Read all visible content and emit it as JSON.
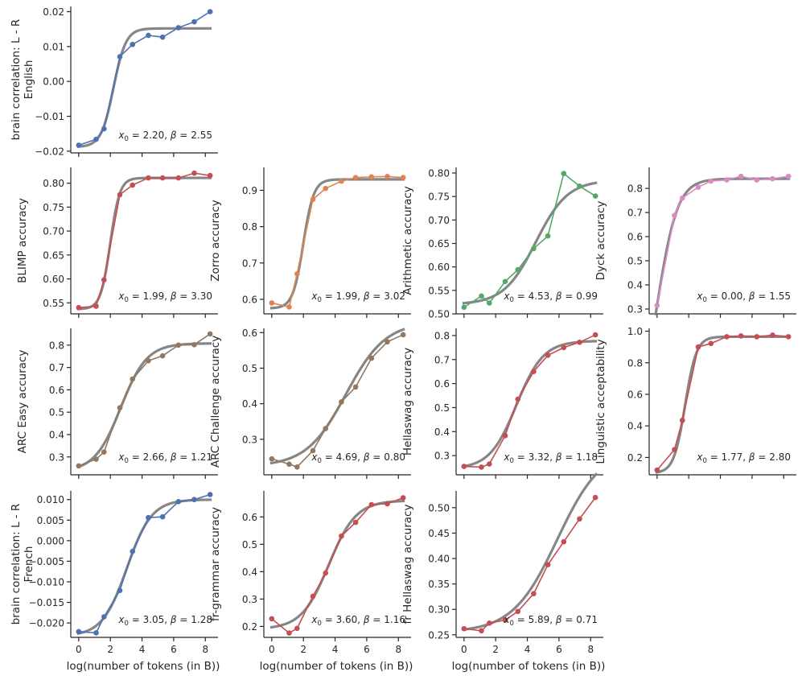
{
  "figure": {
    "xlabel": "log(number of tokens (in B))",
    "fit_color": "#808080"
  },
  "chart_data": [
    {
      "type": "line",
      "row": 0,
      "col": 0,
      "ylabel": [
        "brain correlation: L - R",
        "English"
      ],
      "color": "#4c72b0",
      "ylim": [
        -0.0205,
        0.0215
      ],
      "yticks": [
        -0.02,
        -0.01,
        0.0,
        0.01,
        0.02
      ],
      "yticklabels": [
        "−0.02",
        "−0.01",
        "0.00",
        "0.01",
        "0.02"
      ],
      "xticks": [
        0,
        2,
        4,
        6,
        8
      ],
      "xticklabels": [],
      "fit": {
        "x0": 2.2,
        "beta": 2.55,
        "low": -0.0188,
        "high": 0.0152
      },
      "annotation": {
        "x0": "2.20",
        "beta": "2.55"
      },
      "x": [
        0,
        1.1,
        1.6,
        2.6,
        3.4,
        4.4,
        5.3,
        6.3,
        7.3,
        8.3
      ],
      "y": [
        -0.0183,
        -0.0166,
        -0.0136,
        0.0071,
        0.0106,
        0.0132,
        0.0127,
        0.0154,
        0.0171,
        0.02
      ]
    },
    {
      "type": "line",
      "row": 1,
      "col": 0,
      "ylabel": [
        "BLIMP accuracy"
      ],
      "color": "#c44e52",
      "ylim": [
        0.527,
        0.833
      ],
      "yticks": [
        0.55,
        0.6,
        0.65,
        0.7,
        0.75,
        0.8
      ],
      "yticklabels": [
        "0.55",
        "0.60",
        "0.65",
        "0.70",
        "0.75",
        "0.80"
      ],
      "xticks": [
        0,
        2,
        4,
        6,
        8
      ],
      "xticklabels": [],
      "fit": {
        "x0": 1.99,
        "beta": 3.3,
        "low": 0.537,
        "high": 0.811
      },
      "annotation": {
        "x0": "1.99",
        "beta": "3.30"
      },
      "x": [
        0,
        1.1,
        1.6,
        2.6,
        3.4,
        4.4,
        5.3,
        6.3,
        7.3,
        8.3
      ],
      "y": [
        0.54,
        0.543,
        0.598,
        0.776,
        0.796,
        0.811,
        0.811,
        0.811,
        0.821,
        0.816
      ]
    },
    {
      "type": "line",
      "row": 1,
      "col": 1,
      "ylabel": [
        "Zorro accuracy"
      ],
      "color": "#dd8452",
      "ylim": [
        0.56,
        0.963
      ],
      "yticks": [
        0.6,
        0.7,
        0.8,
        0.9
      ],
      "yticklabels": [
        "0.6",
        "0.7",
        "0.8",
        "0.9"
      ],
      "xticks": [
        0,
        2,
        4,
        6,
        8
      ],
      "xticklabels": [],
      "fit": {
        "x0": 1.99,
        "beta": 3.02,
        "low": 0.575,
        "high": 0.93
      },
      "annotation": {
        "x0": "1.99",
        "beta": "3.02"
      },
      "x": [
        0,
        1.1,
        1.6,
        2.6,
        3.4,
        4.4,
        5.3,
        6.3,
        7.3,
        8.3
      ],
      "y": [
        0.59,
        0.579,
        0.67,
        0.875,
        0.905,
        0.925,
        0.935,
        0.937,
        0.938,
        0.935
      ]
    },
    {
      "type": "line",
      "row": 1,
      "col": 2,
      "ylabel": [
        "Arithmetic accuracy"
      ],
      "color": "#55a868",
      "ylim": [
        0.5,
        0.812
      ],
      "yticks": [
        0.5,
        0.55,
        0.6,
        0.65,
        0.7,
        0.75,
        0.8
      ],
      "yticklabels": [
        "0.50",
        "0.55",
        "0.60",
        "0.65",
        "0.70",
        "0.75",
        "0.80"
      ],
      "xticks": [
        0,
        2,
        4,
        6,
        8
      ],
      "xticklabels": [],
      "fit": {
        "x0": 4.53,
        "beta": 0.99,
        "low": 0.52,
        "high": 0.785
      },
      "annotation": {
        "x0": "4.53",
        "beta": "0.99"
      },
      "x": [
        0,
        1.1,
        1.6,
        2.6,
        3.4,
        4.4,
        5.3,
        6.3,
        7.3,
        8.3
      ],
      "y": [
        0.514,
        0.538,
        0.523,
        0.569,
        0.594,
        0.639,
        0.666,
        0.799,
        0.772,
        0.751
      ]
    },
    {
      "type": "line",
      "row": 1,
      "col": 3,
      "ylabel": [
        "Dyck accuracy"
      ],
      "color": "#da8bc3",
      "ylim": [
        0.28,
        0.887
      ],
      "yticks": [
        0.3,
        0.4,
        0.5,
        0.6,
        0.7,
        0.8
      ],
      "yticklabels": [
        "0.3",
        "0.4",
        "0.5",
        "0.6",
        "0.7",
        "0.8"
      ],
      "xticks": [
        0,
        2,
        4,
        6,
        8
      ],
      "xticklabels": [],
      "fit": {
        "x0": 0.0,
        "beta": 1.55,
        "low": -0.21,
        "high": 0.84
      },
      "annotation": {
        "x0": "0.00",
        "beta": "1.55"
      },
      "x": [
        0,
        1.1,
        1.6,
        2.6,
        3.4,
        4.4,
        5.3,
        6.3,
        7.3,
        8.3
      ],
      "y": [
        0.315,
        0.688,
        0.76,
        0.805,
        0.83,
        0.835,
        0.85,
        0.835,
        0.84,
        0.85
      ]
    },
    {
      "type": "line",
      "row": 2,
      "col": 0,
      "ylabel": [
        "ARC Easy accuracy"
      ],
      "color": "#937860",
      "ylim": [
        0.22,
        0.875
      ],
      "yticks": [
        0.3,
        0.4,
        0.5,
        0.6,
        0.7,
        0.8
      ],
      "yticklabels": [
        "0.3",
        "0.4",
        "0.5",
        "0.6",
        "0.7",
        "0.8"
      ],
      "xticks": [
        0,
        2,
        4,
        6,
        8
      ],
      "xticklabels": [],
      "fit": {
        "x0": 2.66,
        "beta": 1.21,
        "low": 0.234,
        "high": 0.808
      },
      "annotation": {
        "x0": "2.66",
        "beta": "1.21"
      },
      "x": [
        0,
        1.1,
        1.6,
        2.6,
        3.4,
        4.4,
        5.3,
        6.3,
        7.3,
        8.3
      ],
      "y": [
        0.26,
        0.29,
        0.322,
        0.52,
        0.648,
        0.73,
        0.752,
        0.8,
        0.802,
        0.85
      ]
    },
    {
      "type": "line",
      "row": 2,
      "col": 1,
      "ylabel": [
        "ARC Challenge accuracy"
      ],
      "color": "#937860",
      "ylim": [
        0.2,
        0.612
      ],
      "yticks": [
        0.3,
        0.4,
        0.5,
        0.6
      ],
      "yticklabels": [
        "0.3",
        "0.4",
        "0.5",
        "0.6"
      ],
      "xticks": [
        0,
        2,
        4,
        6,
        8
      ],
      "xticklabels": [],
      "fit": {
        "x0": 4.69,
        "beta": 0.8,
        "low": 0.224,
        "high": 0.63
      },
      "annotation": {
        "x0": "4.69",
        "beta": "0.80"
      },
      "x": [
        0,
        1.1,
        1.6,
        2.6,
        3.4,
        4.4,
        5.3,
        6.3,
        7.3,
        8.3
      ],
      "y": [
        0.245,
        0.23,
        0.222,
        0.268,
        0.33,
        0.405,
        0.447,
        0.528,
        0.574,
        0.594
      ]
    },
    {
      "type": "line",
      "row": 2,
      "col": 2,
      "ylabel": [
        "Hellaswag accuracy"
      ],
      "color": "#c44e52",
      "ylim": [
        0.22,
        0.83
      ],
      "yticks": [
        0.3,
        0.4,
        0.5,
        0.6,
        0.7,
        0.8
      ],
      "yticklabels": [
        "0.3",
        "0.4",
        "0.5",
        "0.6",
        "0.7",
        "0.8"
      ],
      "xticks": [
        0,
        2,
        4,
        6,
        8
      ],
      "xticklabels": [],
      "fit": {
        "x0": 3.32,
        "beta": 1.18,
        "low": 0.245,
        "high": 0.778
      },
      "annotation": {
        "x0": "3.32",
        "beta": "1.18"
      },
      "x": [
        0,
        1.1,
        1.6,
        2.6,
        3.4,
        4.4,
        5.3,
        6.3,
        7.3,
        8.3
      ],
      "y": [
        0.255,
        0.252,
        0.265,
        0.383,
        0.535,
        0.65,
        0.718,
        0.75,
        0.772,
        0.803
      ]
    },
    {
      "type": "line",
      "row": 2,
      "col": 3,
      "ylabel": [
        "Linguistic acceptability"
      ],
      "color": "#c44e52",
      "ylim": [
        0.09,
        1.018
      ],
      "yticks": [
        0.2,
        0.4,
        0.6,
        0.8,
        1.0
      ],
      "yticklabels": [
        "0.2",
        "0.4",
        "0.6",
        "0.8",
        "1.0"
      ],
      "xticks": [
        0,
        2,
        4,
        6,
        8
      ],
      "xticklabels": [],
      "fit": {
        "x0": 1.77,
        "beta": 2.8,
        "low": 0.1,
        "high": 0.965
      },
      "annotation": {
        "x0": "1.77",
        "beta": "2.80"
      },
      "x": [
        0,
        1.1,
        1.6,
        2.6,
        3.4,
        4.4,
        5.3,
        6.3,
        7.3,
        8.3
      ],
      "y": [
        0.12,
        0.25,
        0.435,
        0.9,
        0.922,
        0.965,
        0.97,
        0.965,
        0.975,
        0.965
      ]
    },
    {
      "type": "line",
      "row": 3,
      "col": 0,
      "ylabel": [
        "brain correlation: L - R",
        "French"
      ],
      "color": "#4c72b0",
      "ylim": [
        -0.0235,
        0.0121
      ],
      "yticks": [
        -0.02,
        -0.015,
        -0.01,
        -0.005,
        0.0,
        0.005,
        0.01
      ],
      "yticklabels": [
        "−0.020",
        "−0.015",
        "−0.010",
        "−0.005",
        "0.000",
        "0.005",
        "0.010"
      ],
      "xticks": [
        0,
        2,
        4,
        6,
        8
      ],
      "xticklabels": [
        "0",
        "2",
        "4",
        "6",
        "8"
      ],
      "fit": {
        "x0": 3.05,
        "beta": 1.28,
        "low": -0.0232,
        "high": 0.01
      },
      "annotation": {
        "x0": "3.05",
        "beta": "1.28"
      },
      "x": [
        0,
        1.1,
        1.6,
        2.6,
        3.4,
        4.4,
        5.3,
        6.3,
        7.3,
        8.3
      ],
      "y": [
        -0.0221,
        -0.0224,
        -0.0185,
        -0.0121,
        -0.0026,
        0.0056,
        0.0058,
        0.0095,
        0.01,
        0.0112
      ]
    },
    {
      "type": "line",
      "row": 3,
      "col": 1,
      "ylabel": [
        "fr-grammar accuracy"
      ],
      "color": "#c44e52",
      "ylim": [
        0.16,
        0.695
      ],
      "yticks": [
        0.2,
        0.3,
        0.4,
        0.5,
        0.6
      ],
      "yticklabels": [
        "0.2",
        "0.3",
        "0.4",
        "0.5",
        "0.6"
      ],
      "xticks": [
        0,
        2,
        4,
        6,
        8
      ],
      "xticklabels": [
        "0",
        "2",
        "4",
        "6",
        "8"
      ],
      "fit": {
        "x0": 3.6,
        "beta": 1.16,
        "low": 0.19,
        "high": 0.66
      },
      "annotation": {
        "x0": "3.60",
        "beta": "1.16"
      },
      "x": [
        0,
        1.1,
        1.6,
        2.6,
        3.4,
        4.4,
        5.3,
        6.3,
        7.3,
        8.3
      ],
      "y": [
        0.228,
        0.176,
        0.193,
        0.31,
        0.395,
        0.53,
        0.58,
        0.645,
        0.648,
        0.67
      ]
    },
    {
      "type": "line",
      "row": 3,
      "col": 2,
      "ylabel": [
        "fr Hellaswag accuracy"
      ],
      "color": "#c44e52",
      "ylim": [
        0.245,
        0.533
      ],
      "yticks": [
        0.25,
        0.3,
        0.35,
        0.4,
        0.45,
        0.5
      ],
      "yticklabels": [
        "0.25",
        "0.30",
        "0.35",
        "0.40",
        "0.45",
        "0.50"
      ],
      "xticks": [
        0,
        2,
        4,
        6,
        8
      ],
      "xticklabels": [
        "0",
        "2",
        "4",
        "6",
        "8"
      ],
      "fit": {
        "x0": 5.89,
        "beta": 0.71,
        "low": 0.255,
        "high": 0.62
      },
      "annotation": {
        "x0": "5.89",
        "beta": "0.71"
      },
      "x": [
        0,
        1.1,
        1.6,
        2.6,
        3.4,
        4.4,
        5.3,
        6.3,
        7.3,
        8.3
      ],
      "y": [
        0.262,
        0.258,
        0.273,
        0.279,
        0.296,
        0.331,
        0.388,
        0.433,
        0.478,
        0.52
      ]
    }
  ]
}
